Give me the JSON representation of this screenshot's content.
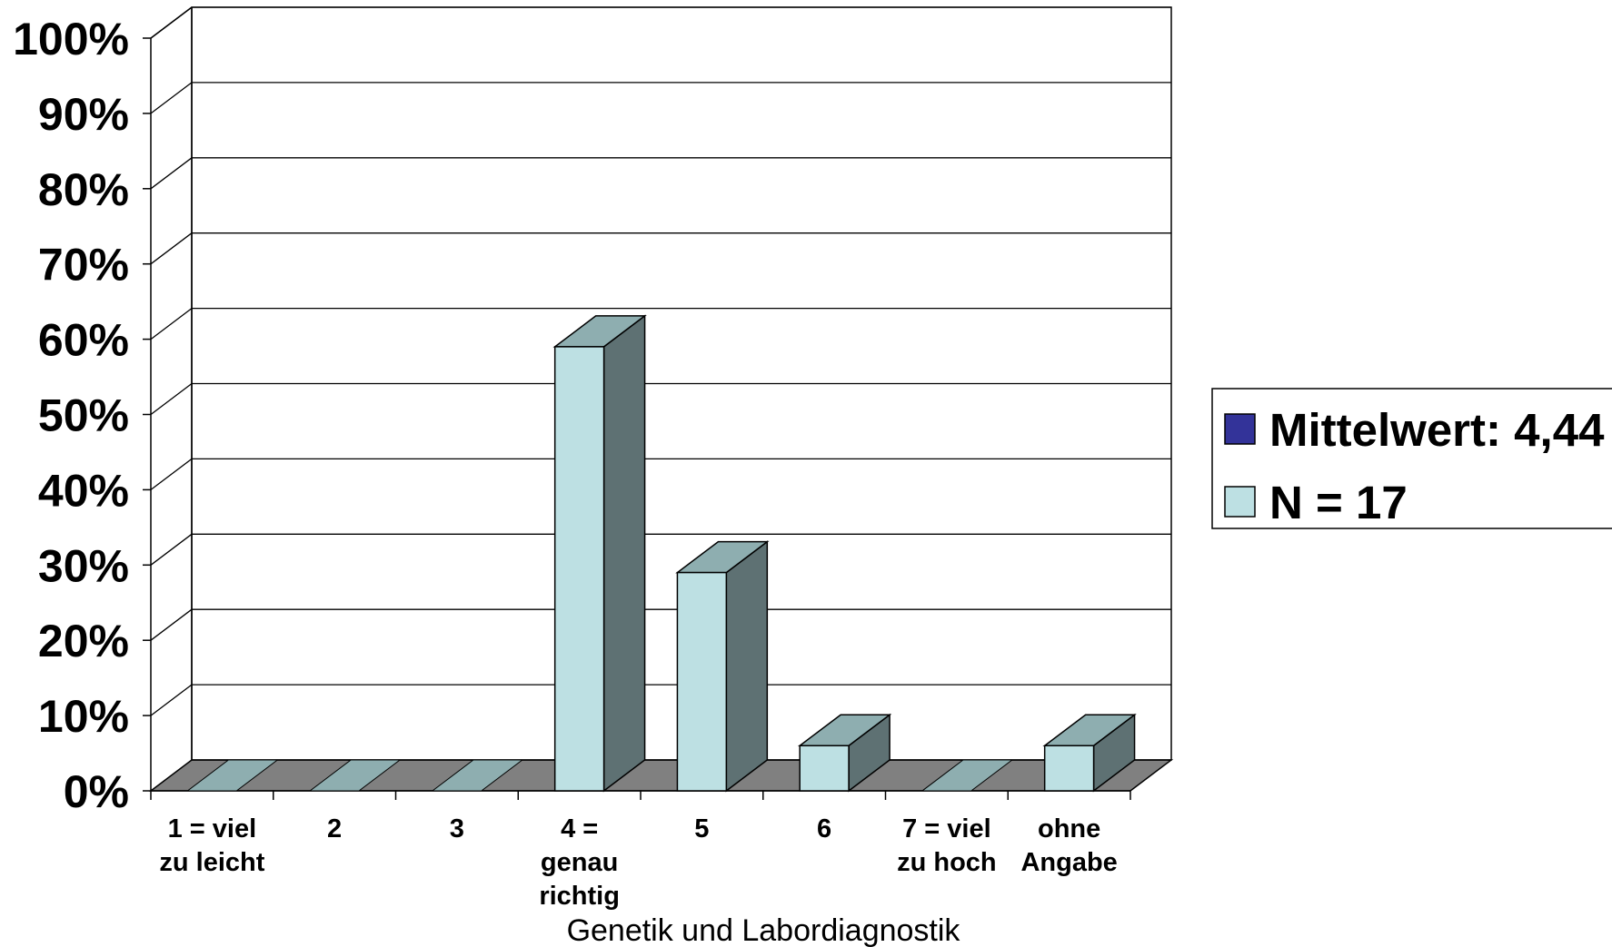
{
  "chart_data": {
    "type": "bar",
    "style": "3d-column",
    "categories": [
      [
        "1 = viel",
        "zu leicht"
      ],
      [
        "2"
      ],
      [
        "3"
      ],
      [
        "4 =",
        "genau",
        "richtig"
      ],
      [
        "5"
      ],
      [
        "6"
      ],
      [
        "7 = viel",
        "zu hoch"
      ],
      [
        "ohne",
        "Angabe"
      ]
    ],
    "series": [
      {
        "name": "N = 17",
        "values": [
          0,
          0,
          0,
          59,
          29,
          6,
          0,
          6
        ]
      }
    ],
    "legend": {
      "placement": "right",
      "entries": [
        {
          "label": "Mittelwert: 4,44",
          "color": "#333399"
        },
        {
          "label": "N = 17",
          "color": "#bde0e3"
        }
      ]
    },
    "xlabel": "Genetik und Labordiagnostik",
    "ylabel": "",
    "ylim": [
      0,
      100
    ],
    "yticks": [
      "0%",
      "10%",
      "20%",
      "30%",
      "40%",
      "50%",
      "60%",
      "70%",
      "80%",
      "90%",
      "100%"
    ],
    "grid": true,
    "colors": {
      "bar_front": "#bde0e3",
      "bar_top": "#8eaeb0",
      "bar_side": "#5e7173",
      "floor": "#808080",
      "floor_bar_mark": "#8eaeb0",
      "gridline": "#000000"
    }
  }
}
